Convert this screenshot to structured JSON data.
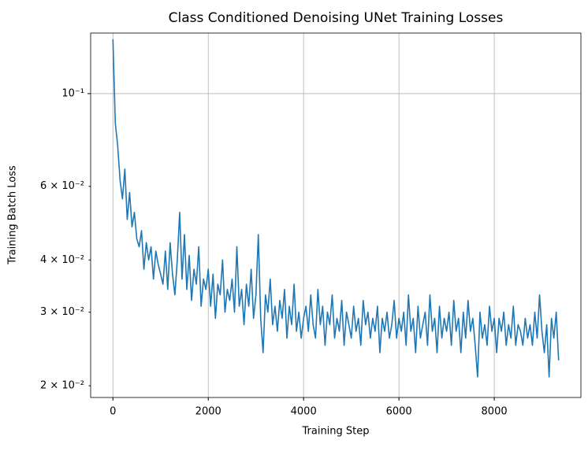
{
  "chart_data": {
    "type": "line",
    "title": "Class Conditioned Denoising UNet Training Losses",
    "xlabel": "Training Step",
    "ylabel": "Training Batch Loss",
    "log_y": true,
    "grid": true,
    "xlim": [
      -467.5,
      9817.5
    ],
    "ylim": [
      0.01875,
      0.1396
    ],
    "xticks": [
      0,
      2000,
      4000,
      6000,
      8000
    ],
    "yticks": [
      {
        "value": 0.02,
        "label": "2 × 10⁻²"
      },
      {
        "value": 0.03,
        "label": "3 × 10⁻²"
      },
      {
        "value": 0.04,
        "label": "4 × 10⁻²"
      },
      {
        "value": 0.06,
        "label": "6 × 10⁻²"
      },
      {
        "value": 0.1,
        "label": "10⁻¹"
      }
    ],
    "x": [
      0,
      50,
      100,
      150,
      200,
      250,
      300,
      350,
      400,
      450,
      500,
      550,
      600,
      650,
      700,
      750,
      800,
      850,
      900,
      950,
      1000,
      1050,
      1100,
      1150,
      1200,
      1250,
      1300,
      1350,
      1400,
      1450,
      1500,
      1550,
      1600,
      1650,
      1700,
      1750,
      1800,
      1850,
      1900,
      1950,
      2000,
      2050,
      2100,
      2150,
      2200,
      2250,
      2300,
      2350,
      2400,
      2450,
      2500,
      2550,
      2600,
      2650,
      2700,
      2750,
      2800,
      2850,
      2900,
      2950,
      3000,
      3050,
      3100,
      3150,
      3200,
      3250,
      3300,
      3350,
      3400,
      3450,
      3500,
      3550,
      3600,
      3650,
      3700,
      3750,
      3800,
      3850,
      3900,
      3950,
      4000,
      4050,
      4100,
      4150,
      4200,
      4250,
      4300,
      4350,
      4400,
      4450,
      4500,
      4550,
      4600,
      4650,
      4700,
      4750,
      4800,
      4850,
      4900,
      4950,
      5000,
      5050,
      5100,
      5150,
      5200,
      5250,
      5300,
      5350,
      5400,
      5450,
      5500,
      5550,
      5600,
      5650,
      5700,
      5750,
      5800,
      5850,
      5900,
      5950,
      6000,
      6050,
      6100,
      6150,
      6200,
      6250,
      6300,
      6350,
      6400,
      6450,
      6500,
      6550,
      6600,
      6650,
      6700,
      6750,
      6800,
      6850,
      6900,
      6950,
      7000,
      7050,
      7100,
      7150,
      7200,
      7250,
      7300,
      7350,
      7400,
      7450,
      7500,
      7550,
      7600,
      7650,
      7700,
      7750,
      7800,
      7850,
      7900,
      7950,
      8000,
      8050,
      8100,
      8150,
      8200,
      8250,
      8300,
      8350,
      8400,
      8450,
      8500,
      8550,
      8600,
      8650,
      8700,
      8750,
      8800,
      8850,
      8900,
      8950,
      9000,
      9050,
      9100,
      9150,
      9200,
      9250,
      9300,
      9350
    ],
    "series": [
      {
        "color": "#1f77b4",
        "values": [
          0.135,
          0.085,
          0.075,
          0.062,
          0.056,
          0.066,
          0.05,
          0.058,
          0.048,
          0.052,
          0.045,
          0.043,
          0.047,
          0.038,
          0.044,
          0.04,
          0.043,
          0.036,
          0.042,
          0.039,
          0.037,
          0.035,
          0.042,
          0.034,
          0.044,
          0.037,
          0.033,
          0.04,
          0.052,
          0.036,
          0.046,
          0.034,
          0.041,
          0.032,
          0.038,
          0.035,
          0.043,
          0.031,
          0.036,
          0.034,
          0.038,
          0.031,
          0.037,
          0.029,
          0.035,
          0.033,
          0.04,
          0.03,
          0.034,
          0.032,
          0.036,
          0.03,
          0.043,
          0.031,
          0.034,
          0.028,
          0.035,
          0.031,
          0.038,
          0.029,
          0.033,
          0.046,
          0.029,
          0.024,
          0.033,
          0.03,
          0.036,
          0.028,
          0.031,
          0.027,
          0.032,
          0.029,
          0.034,
          0.026,
          0.031,
          0.028,
          0.035,
          0.027,
          0.03,
          0.026,
          0.029,
          0.031,
          0.027,
          0.033,
          0.028,
          0.026,
          0.034,
          0.028,
          0.031,
          0.025,
          0.03,
          0.028,
          0.033,
          0.026,
          0.029,
          0.027,
          0.032,
          0.025,
          0.03,
          0.028,
          0.026,
          0.031,
          0.027,
          0.029,
          0.025,
          0.032,
          0.028,
          0.03,
          0.026,
          0.029,
          0.027,
          0.031,
          0.024,
          0.029,
          0.027,
          0.03,
          0.026,
          0.028,
          0.032,
          0.026,
          0.029,
          0.027,
          0.03,
          0.025,
          0.033,
          0.027,
          0.029,
          0.024,
          0.031,
          0.026,
          0.028,
          0.03,
          0.025,
          0.033,
          0.027,
          0.029,
          0.024,
          0.031,
          0.026,
          0.029,
          0.027,
          0.03,
          0.025,
          0.032,
          0.027,
          0.029,
          0.024,
          0.03,
          0.026,
          0.032,
          0.027,
          0.029,
          0.025,
          0.021,
          0.03,
          0.026,
          0.028,
          0.025,
          0.031,
          0.027,
          0.029,
          0.024,
          0.029,
          0.027,
          0.03,
          0.025,
          0.028,
          0.026,
          0.031,
          0.025,
          0.028,
          0.027,
          0.025,
          0.029,
          0.026,
          0.028,
          0.025,
          0.03,
          0.026,
          0.033,
          0.027,
          0.024,
          0.028,
          0.021,
          0.029,
          0.026,
          0.03,
          0.023
        ]
      }
    ]
  }
}
